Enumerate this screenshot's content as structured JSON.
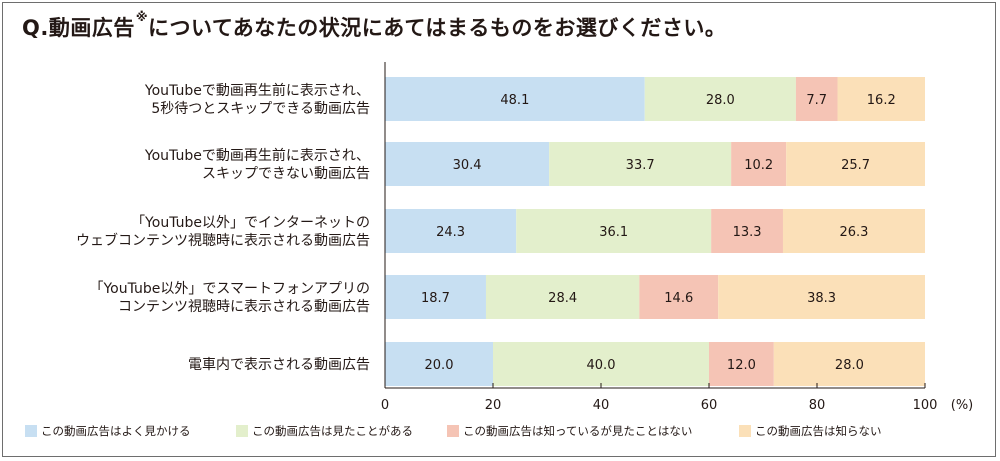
{
  "title": {
    "prefix": "Q.動画広告",
    "mark": "※",
    "rest": "についてあなたの状況にあてはまるものをお選びください。"
  },
  "chart_data": {
    "type": "bar",
    "orientation": "horizontal",
    "stacked": true,
    "percent_stacked": true,
    "categories": [
      [
        "YouTubeで動画再生前に表示され、",
        "5秒待つとスキップできる動画広告"
      ],
      [
        "YouTubeで動画再生前に表示され、",
        "スキップできない動画広告"
      ],
      [
        "「YouTube以外」でインターネットの",
        "ウェブコンテンツ視聴時に表示される動画広告"
      ],
      [
        "「YouTube以外」でスマートフォンアプリの",
        "コンテンツ視聴時に表示される動画広告"
      ],
      [
        "電車内で表示される動画広告"
      ]
    ],
    "series": [
      {
        "name": "この動画広告はよく見かける",
        "color": "#c7dff2",
        "values": [
          48.1,
          30.4,
          24.3,
          18.7,
          20.0
        ]
      },
      {
        "name": "この動画広告は見たことがある",
        "color": "#e3efcc",
        "values": [
          28.0,
          33.7,
          36.1,
          28.4,
          40.0
        ]
      },
      {
        "name": "この動画広告は知っているが見たことはない",
        "color": "#f5c4b5",
        "values": [
          7.7,
          10.2,
          13.3,
          14.6,
          12.0
        ]
      },
      {
        "name": "この動画広告は知らない",
        "color": "#fbe0b8",
        "values": [
          16.2,
          25.7,
          26.3,
          38.3,
          28.0
        ]
      }
    ],
    "value_labels": [
      [
        "48.1",
        "28.0",
        "7.7",
        "16.2"
      ],
      [
        "30.4",
        "33.7",
        "10.2",
        "25.7"
      ],
      [
        "24.3",
        "36.1",
        "13.3",
        "26.3"
      ],
      [
        "18.7",
        "28.4",
        "14.6",
        "38.3"
      ],
      [
        "20.0",
        "40.0",
        "12.0",
        "28.0"
      ]
    ],
    "xlim": [
      0,
      100
    ],
    "xticks": [
      "0",
      "20",
      "40",
      "60",
      "80",
      "100"
    ],
    "xtick_values": [
      0,
      20,
      40,
      60,
      80,
      100
    ],
    "unit": "(%)",
    "grid": false,
    "legend_position": "bottom"
  }
}
